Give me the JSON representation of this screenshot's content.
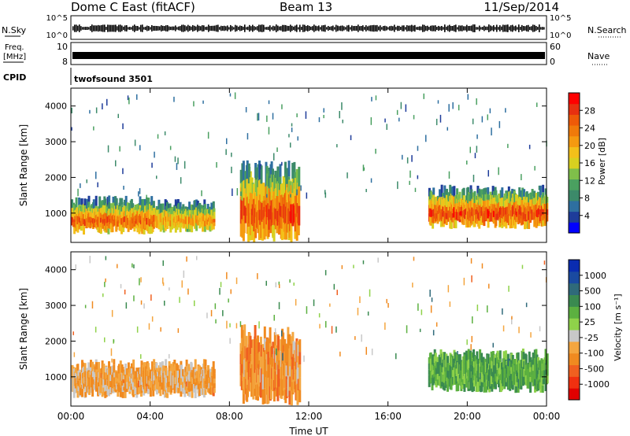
{
  "header": {
    "title": "Dome C East (fitACF)",
    "beam": "Beam 13",
    "date": "11/Sep/2014"
  },
  "strips": {
    "nsky_label": "N.Sky",
    "nsky_ticks": [
      "10^5",
      "10^0"
    ],
    "nsearch_label": "N.Search",
    "freq_label": "Freq.",
    "freq_unit": "[MHz]",
    "freq_ticks": [
      "10",
      "8"
    ],
    "nave_label": "Nave",
    "nave_ticks": [
      "60",
      "0"
    ],
    "cpid_label": "CPID",
    "cpid_value": "twofsound 3501"
  },
  "colorbars": {
    "power": {
      "label": "Power [dB]",
      "ticks": [
        "28",
        "24",
        "20",
        "16",
        "12",
        "8",
        "4"
      ],
      "colors": [
        "#0000ff",
        "#1e3c9a",
        "#2e6fa0",
        "#3c8a6a",
        "#4aa060",
        "#7fbf4a",
        "#d8d020",
        "#f3c01a",
        "#f59a10",
        "#f07a0a",
        "#ee5a08",
        "#e83010",
        "#ff0000"
      ]
    },
    "velocity": {
      "label": "Velocity [m s⁻¹]",
      "ticks": [
        "1000",
        "500",
        "100",
        "25",
        "-25",
        "-100",
        "-500",
        "-1000"
      ],
      "colors": [
        "#e00000",
        "#f03010",
        "#f06020",
        "#f08a20",
        "#f4a640",
        "#c8c8c8",
        "#8fd24a",
        "#5cb040",
        "#3a8a50",
        "#2f6a7a",
        "#1a4aa0",
        "#0a2cb0"
      ]
    }
  },
  "chart_data": [
    {
      "type": "heatmap",
      "title": "Power",
      "ylabel": "Slant Range [km]",
      "xlabel": "Time UT",
      "x_ticks": [
        "00:00",
        "04:00",
        "08:00",
        "12:00",
        "16:00",
        "20:00",
        "00:00"
      ],
      "y_ticks": [
        1000,
        2000,
        3000,
        4000
      ],
      "xlim_hours": [
        0,
        24
      ],
      "ylim_km": [
        180,
        4500
      ],
      "colorbar_range_db": [
        0,
        30
      ],
      "echo_regions": [
        {
          "start_hour": 0.0,
          "end_hour": 4.2,
          "range_km": [
            400,
            1500
          ],
          "peak_db": 26
        },
        {
          "start_hour": 4.2,
          "end_hour": 7.2,
          "range_km": [
            450,
            1400
          ],
          "peak_db": 22
        },
        {
          "start_hour": 8.5,
          "end_hour": 11.5,
          "range_km": [
            180,
            2500
          ],
          "peak_db": 28
        },
        {
          "start_hour": 18.0,
          "end_hour": 24.0,
          "range_km": [
            550,
            1800
          ],
          "peak_db": 28
        }
      ]
    },
    {
      "type": "heatmap",
      "title": "Velocity",
      "ylabel": "Slant Range [km]",
      "xlabel": "Time UT",
      "x_ticks": [
        "00:00",
        "04:00",
        "08:00",
        "12:00",
        "16:00",
        "20:00",
        "00:00"
      ],
      "y_ticks": [
        1000,
        2000,
        3000,
        4000
      ],
      "xlim_hours": [
        0,
        24
      ],
      "ylim_km": [
        180,
        4500
      ],
      "colorbar_range_ms": [
        -1000,
        1000
      ],
      "echo_regions": [
        {
          "start_hour": 0.0,
          "end_hour": 7.2,
          "range_km": [
            400,
            1500
          ],
          "velocity_ms": -300
        },
        {
          "start_hour": 8.5,
          "end_hour": 11.5,
          "range_km": [
            180,
            2500
          ],
          "velocity_ms": -400
        },
        {
          "start_hour": 18.0,
          "end_hour": 24.0,
          "range_km": [
            550,
            1800
          ],
          "velocity_ms": 300
        }
      ]
    }
  ],
  "x_axis_label": "Time UT"
}
